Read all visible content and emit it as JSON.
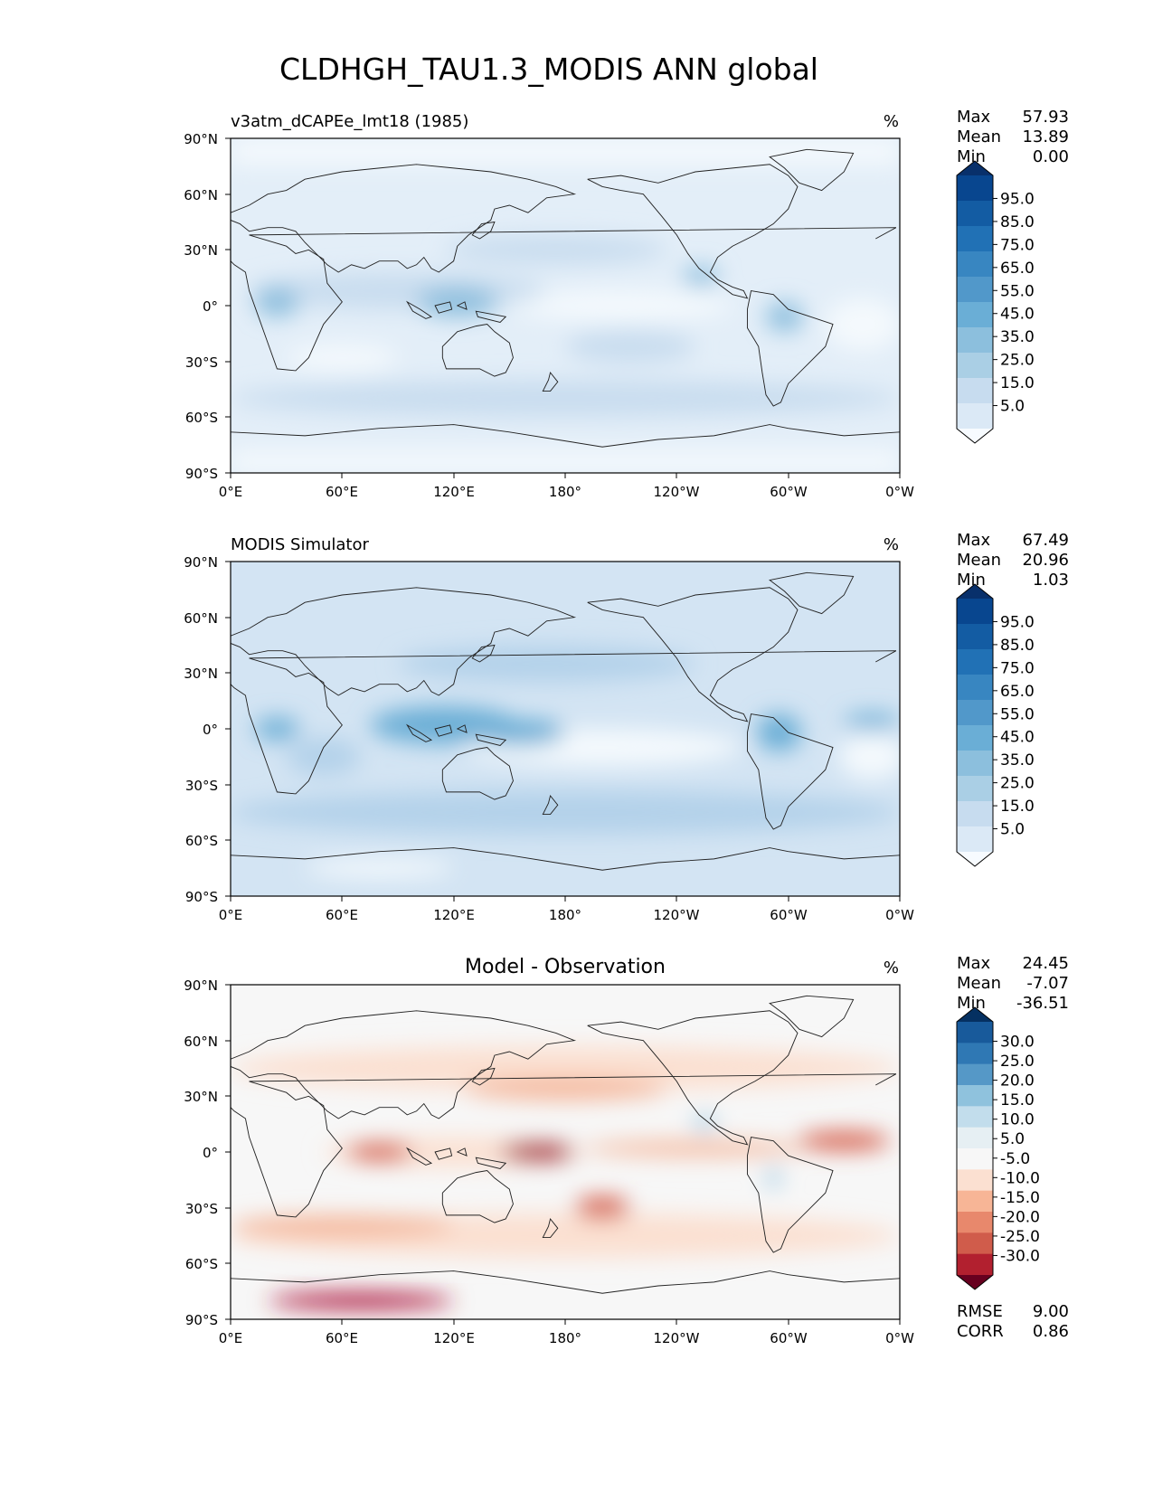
{
  "figure": {
    "title": "CLDHGH_TAU1.3_MODIS ANN global",
    "lat_ticks": [
      "90°N",
      "60°N",
      "30°N",
      "0°",
      "30°S",
      "60°S",
      "90°S"
    ],
    "lon_ticks": [
      "0°E",
      "60°E",
      "120°E",
      "180°",
      "120°W",
      "60°W",
      "0°W"
    ]
  },
  "panels": [
    {
      "id": "test",
      "title": "v3atm_dCAPEe_lmt18 (1985)",
      "units": "%",
      "stats": [
        {
          "label": "Max",
          "value": "57.93"
        },
        {
          "label": "Mean",
          "value": "13.89"
        },
        {
          "label": "Min",
          "value": "0.00"
        }
      ],
      "colorbar": {
        "ticks": [
          "95.0",
          "85.0",
          "75.0",
          "65.0",
          "55.0",
          "45.0",
          "35.0",
          "25.0",
          "15.0",
          "5.0"
        ],
        "colors": [
          "#08306b",
          "#08468f",
          "#135ca3",
          "#2171b5",
          "#3886c1",
          "#5198ca",
          "#6aaed6",
          "#8cbfdd",
          "#aacfe5",
          "#c7dcef",
          "#dbe9f6",
          "#f7fbff"
        ]
      },
      "field_colors": {
        "background": "#e3eef8",
        "light": "#f4f9fd",
        "mid": "#c9ddef",
        "strong": "#8ebfde"
      }
    },
    {
      "id": "reference",
      "title": "MODIS Simulator",
      "units": "%",
      "stats": [
        {
          "label": "Max",
          "value": "67.49"
        },
        {
          "label": "Mean",
          "value": "20.96"
        },
        {
          "label": "Min",
          "value": "1.03"
        }
      ],
      "colorbar": {
        "ticks": [
          "95.0",
          "85.0",
          "75.0",
          "65.0",
          "55.0",
          "45.0",
          "35.0",
          "25.0",
          "15.0",
          "5.0"
        ],
        "colors": [
          "#08306b",
          "#08468f",
          "#135ca3",
          "#2171b5",
          "#3886c1",
          "#5198ca",
          "#6aaed6",
          "#8cbfdd",
          "#aacfe5",
          "#c7dcef",
          "#dbe9f6",
          "#f7fbff"
        ]
      },
      "field_colors": {
        "background": "#d3e4f3",
        "light": "#f4f9fd",
        "mid": "#b4d2ea",
        "strong": "#6aaed6"
      }
    },
    {
      "id": "difference",
      "title": "Model - Observation",
      "units": "%",
      "stats": [
        {
          "label": "Max",
          "value": "24.45"
        },
        {
          "label": "Mean",
          "value": "-7.07"
        },
        {
          "label": "Min",
          "value": "-36.51"
        }
      ],
      "colorbar": {
        "ticks": [
          "30.0",
          "25.0",
          "20.0",
          "15.0",
          "10.0",
          "5.0",
          "-5.0",
          "-10.0",
          "-15.0",
          "-20.0",
          "-25.0",
          "-30.0"
        ],
        "colors": [
          "#053061",
          "#185a9b",
          "#2f78b4",
          "#5598c7",
          "#8fc2dd",
          "#c2ddec",
          "#e6eff3",
          "#f7f7f7",
          "#fbe0d1",
          "#f7b596",
          "#e8886c",
          "#d05c4b",
          "#b2202f",
          "#67001f"
        ]
      },
      "field_colors": {
        "background": "#f7f7f7",
        "light": "#fbe0d1",
        "mid": "#f4b79b",
        "strong": "#d6604d",
        "deep": "#a50f2a",
        "blue": "#a8cde3"
      },
      "metrics": [
        {
          "label": "RMSE",
          "value": "9.00"
        },
        {
          "label": "CORR",
          "value": "0.86"
        }
      ]
    }
  ]
}
